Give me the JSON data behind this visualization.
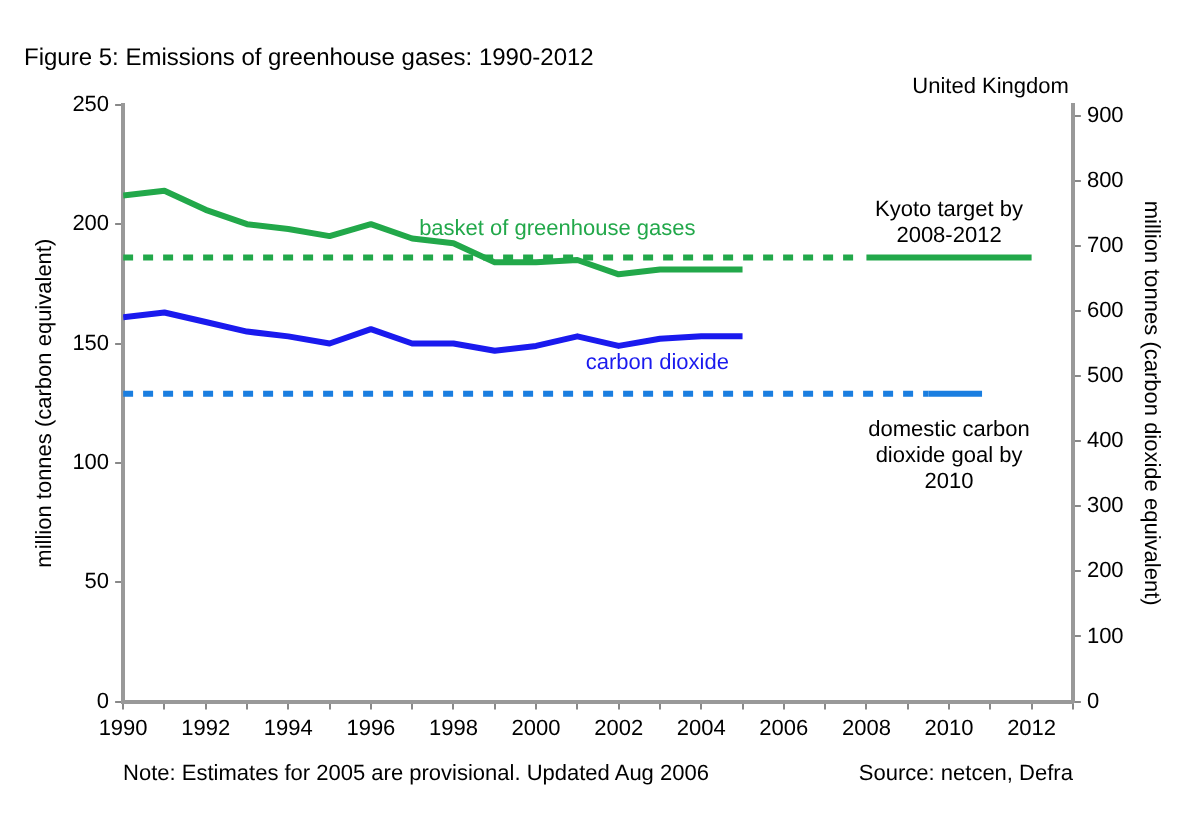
{
  "chart_data": {
    "type": "line",
    "title": "Figure 5: Emissions of greenhouse gases: 1990-2012",
    "ylabel": "million tonnes (carbon equivalent)",
    "y2label": "million tonnes (carbon dioxide equivalent)",
    "xlim": [
      1990,
      2013
    ],
    "xticks": [
      1990,
      {
        "value": 1991,
        "label": null
      },
      1992,
      {
        "value": 1993,
        "label": null
      },
      1994,
      {
        "value": 1995,
        "label": null
      },
      1996,
      {
        "value": 1997,
        "label": null
      },
      1998,
      {
        "value": 1999,
        "label": null
      },
      2000,
      {
        "value": 2001,
        "label": null
      },
      2002,
      {
        "value": 2003,
        "label": null
      },
      2004,
      {
        "value": 2005,
        "label": null
      },
      2006,
      {
        "value": 2007,
        "label": null
      },
      2008,
      {
        "value": 2009,
        "label": null
      },
      2010,
      {
        "value": 2011,
        "label": null
      },
      2012,
      {
        "value": 2013,
        "label": null
      }
    ],
    "ylim": [
      0,
      250
    ],
    "yticks": [
      0,
      50,
      100,
      150,
      200,
      250
    ],
    "y2lim": [
      0,
      916.7
    ],
    "y2ticks": [
      0,
      100,
      200,
      300,
      400,
      500,
      600,
      700,
      800,
      900
    ],
    "grid": false,
    "legend": false,
    "marker": "none",
    "series": [
      {
        "name": "basket of greenhouse gases",
        "color": "#22a84a",
        "x": [
          1990,
          1991,
          1992,
          1993,
          1994,
          1995,
          1996,
          1997,
          1998,
          1999,
          2000,
          2001,
          2002,
          2003,
          2004,
          2005
        ],
        "values": [
          212,
          214,
          206,
          200,
          198,
          195,
          200,
          194,
          192,
          184,
          184,
          185,
          179,
          181,
          181,
          181
        ]
      },
      {
        "name": "carbon dioxide",
        "color": "#1a1aee",
        "x": [
          1990,
          1991,
          1992,
          1993,
          1994,
          1995,
          1996,
          1997,
          1998,
          1999,
          2000,
          2001,
          2002,
          2003,
          2004,
          2005
        ],
        "values": [
          161,
          163,
          159,
          155,
          153,
          150,
          156,
          150,
          150,
          147,
          149,
          153,
          149,
          152,
          153,
          153
        ]
      },
      {
        "color": "#22a84a",
        "line_style": "dashed",
        "x": [
          1990,
          2007.7
        ],
        "values": [
          186,
          186
        ]
      },
      {
        "color": "#22a84a",
        "x": [
          2008,
          2012
        ],
        "values": [
          186,
          186
        ]
      },
      {
        "color": "#1a7ee0",
        "line_style": "dashed",
        "x": [
          1990,
          2009.5
        ],
        "values": [
          129,
          129
        ]
      },
      {
        "color": "#1a7ee0",
        "x": [
          2009.5,
          2010.8
        ],
        "values": [
          129,
          129
        ]
      }
    ],
    "annotations": [
      {
        "text": "Kyoto target by 2008-2012",
        "x": 2010,
        "y": 186
      },
      {
        "text": "domestic carbon dioxide goal by 2010",
        "x": 2010,
        "y": 129
      },
      "United Kingdom",
      "Note: Estimates for 2005 are provisional. Updated Aug 2006",
      "Source: netcen, Defra"
    ]
  }
}
